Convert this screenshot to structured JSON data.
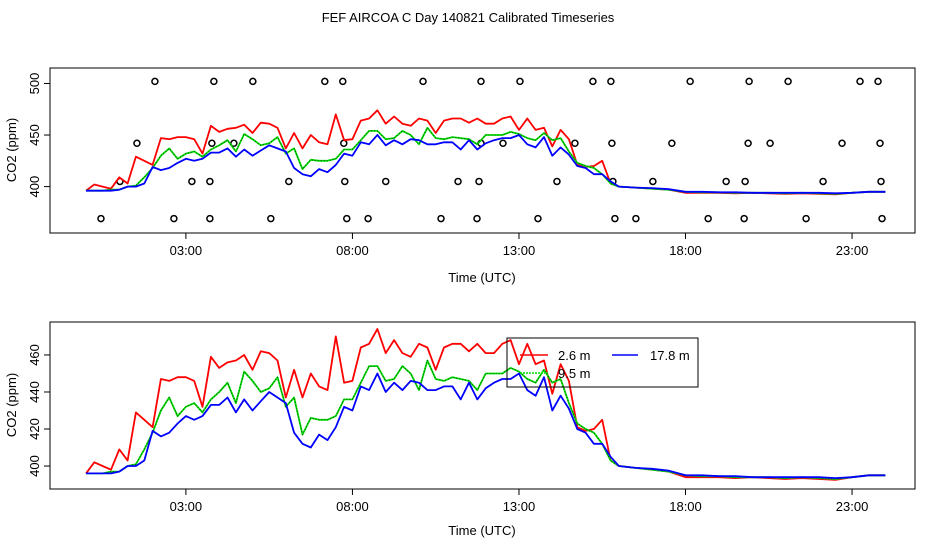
{
  "title": "FEF AIRCOA C  Day 140821  Calibrated Timeseries",
  "colors": {
    "s2_6": "#ff0000",
    "s9_5": "#00dd00",
    "s17_8": "#0000ff",
    "flag": "#000000"
  },
  "chart_data": [
    {
      "type": "line",
      "xlabel": "Time (UTC)",
      "ylabel": "CO2 (ppm)",
      "xlim": [
        -1.08,
        24.89
      ],
      "ylim": [
        355,
        515
      ],
      "xticks": [
        {
          "v": 3,
          "label": "03:00"
        },
        {
          "v": 8,
          "label": "08:00"
        },
        {
          "v": 13,
          "label": "13:00"
        },
        {
          "v": 18,
          "label": "18:00"
        },
        {
          "v": 23,
          "label": "23:00"
        }
      ],
      "yticks": [
        {
          "v": 400,
          "label": "400"
        },
        {
          "v": 450,
          "label": "450"
        },
        {
          "v": 500,
          "label": "500"
        }
      ],
      "grid": false,
      "x": [
        0,
        0.25,
        0.5,
        0.75,
        1,
        1.25,
        1.5,
        1.75,
        2,
        2.25,
        2.5,
        2.75,
        3,
        3.25,
        3.5,
        3.75,
        4,
        4.25,
        4.5,
        4.75,
        5,
        5.25,
        5.5,
        5.75,
        6,
        6.25,
        6.5,
        6.75,
        7,
        7.25,
        7.5,
        7.75,
        8,
        8.25,
        8.5,
        8.75,
        9,
        9.25,
        9.5,
        9.75,
        10,
        10.25,
        10.5,
        10.75,
        11,
        11.25,
        11.5,
        11.75,
        12,
        12.25,
        12.5,
        12.75,
        13,
        13.25,
        13.5,
        13.75,
        14,
        14.25,
        14.5,
        14.75,
        15,
        15.25,
        15.5,
        15.75,
        16,
        16.5,
        17,
        17.5,
        18,
        18.5,
        19,
        19.5,
        20,
        20.5,
        21,
        21.5,
        22,
        22.5,
        23,
        23.5,
        24
      ],
      "series": [
        {
          "key": "s2_6",
          "values": [
            396,
            402,
            400,
            398,
            409,
            403,
            429,
            425,
            421,
            447,
            446,
            448,
            448,
            446,
            432,
            459,
            453,
            456,
            457,
            460,
            452,
            462,
            461,
            457,
            437,
            452,
            437,
            450,
            443,
            441,
            470,
            445,
            446,
            464,
            466,
            474,
            461,
            468,
            461,
            459,
            466,
            464,
            452,
            464,
            466,
            466,
            462,
            466,
            461,
            461,
            466,
            468,
            455,
            466,
            455,
            457,
            439,
            455,
            446,
            421,
            419,
            420,
            425,
            403,
            400,
            399,
            398,
            397,
            394,
            394,
            394,
            393.5,
            394,
            393.5,
            393,
            393.5,
            393,
            392.5,
            394,
            395,
            395
          ]
        },
        {
          "key": "s9_5",
          "values": [
            396,
            396,
            396,
            397,
            397,
            400,
            401,
            409,
            418,
            430,
            437,
            427,
            432,
            434,
            429,
            436,
            440,
            445,
            434,
            451,
            446,
            440,
            442,
            448,
            432,
            437,
            417,
            426,
            425,
            425,
            427,
            436,
            436,
            445,
            454,
            454,
            446,
            447,
            454,
            450,
            441,
            457,
            447,
            446,
            448,
            447,
            446,
            441,
            450,
            450,
            450,
            453,
            451,
            447,
            445,
            452,
            445,
            447,
            434,
            423,
            420,
            418,
            412,
            403,
            400,
            399,
            398,
            397,
            395,
            394.5,
            394.5,
            394,
            394,
            394,
            393.5,
            394,
            393.5,
            393,
            394,
            395,
            395
          ]
        },
        {
          "key": "s17_8",
          "values": [
            396,
            396,
            396,
            396,
            397,
            400,
            400,
            403,
            419,
            416,
            418,
            423,
            427,
            425,
            427,
            433,
            433,
            437,
            429,
            436,
            430,
            435,
            440,
            437,
            434,
            418,
            412,
            410,
            417,
            414,
            421,
            432,
            430,
            443,
            441,
            450,
            440,
            445,
            441,
            446,
            445,
            441,
            441,
            443,
            443,
            436,
            445,
            436,
            442,
            445,
            447,
            447,
            450,
            441,
            438,
            448,
            430,
            438,
            431,
            420,
            418,
            412,
            412,
            405,
            400,
            399,
            398.5,
            397.5,
            395,
            395,
            394.5,
            394.5,
            394,
            394,
            394,
            394,
            394,
            393.5,
            394,
            395,
            395
          ]
        }
      ],
      "flags": [
        {
          "x": 2.07,
          "y": 502
        },
        {
          "x": 3.84,
          "y": 502
        },
        {
          "x": 5.01,
          "y": 502
        },
        {
          "x": 7.17,
          "y": 502
        },
        {
          "x": 7.71,
          "y": 502
        },
        {
          "x": 10.12,
          "y": 502
        },
        {
          "x": 11.86,
          "y": 502
        },
        {
          "x": 13.03,
          "y": 502
        },
        {
          "x": 15.22,
          "y": 502
        },
        {
          "x": 15.76,
          "y": 502
        },
        {
          "x": 18.14,
          "y": 502
        },
        {
          "x": 19.91,
          "y": 502
        },
        {
          "x": 21.08,
          "y": 502
        },
        {
          "x": 23.24,
          "y": 502
        },
        {
          "x": 23.78,
          "y": 502
        },
        {
          "x": 1.53,
          "y": 442
        },
        {
          "x": 3.78,
          "y": 442
        },
        {
          "x": 4.44,
          "y": 442
        },
        {
          "x": 7.74,
          "y": 442
        },
        {
          "x": 11.86,
          "y": 442
        },
        {
          "x": 12.52,
          "y": 442
        },
        {
          "x": 14.68,
          "y": 442
        },
        {
          "x": 15.79,
          "y": 442
        },
        {
          "x": 17.59,
          "y": 442
        },
        {
          "x": 19.88,
          "y": 442
        },
        {
          "x": 20.54,
          "y": 442
        },
        {
          "x": 22.7,
          "y": 442
        },
        {
          "x": 23.84,
          "y": 442
        },
        {
          "x": 1.02,
          "y": 405
        },
        {
          "x": 3.18,
          "y": 405
        },
        {
          "x": 3.72,
          "y": 405
        },
        {
          "x": 6.09,
          "y": 405
        },
        {
          "x": 7.77,
          "y": 405
        },
        {
          "x": 9.0,
          "y": 405
        },
        {
          "x": 11.17,
          "y": 405
        },
        {
          "x": 11.8,
          "y": 405
        },
        {
          "x": 14.14,
          "y": 405
        },
        {
          "x": 15.82,
          "y": 405
        },
        {
          "x": 17.02,
          "y": 405
        },
        {
          "x": 19.22,
          "y": 405
        },
        {
          "x": 19.79,
          "y": 405
        },
        {
          "x": 22.13,
          "y": 405
        },
        {
          "x": 23.87,
          "y": 405
        },
        {
          "x": 0.45,
          "y": 369
        },
        {
          "x": 2.64,
          "y": 369
        },
        {
          "x": 3.72,
          "y": 369
        },
        {
          "x": 5.55,
          "y": 369
        },
        {
          "x": 7.83,
          "y": 369
        },
        {
          "x": 8.47,
          "y": 369
        },
        {
          "x": 10.66,
          "y": 369
        },
        {
          "x": 11.74,
          "y": 369
        },
        {
          "x": 13.57,
          "y": 369
        },
        {
          "x": 15.88,
          "y": 369
        },
        {
          "x": 16.51,
          "y": 369
        },
        {
          "x": 18.68,
          "y": 369
        },
        {
          "x": 19.76,
          "y": 369
        },
        {
          "x": 21.62,
          "y": 369
        },
        {
          "x": 23.9,
          "y": 369
        }
      ]
    },
    {
      "type": "line",
      "xlabel": "Time (UTC)",
      "ylabel": "CO2 (ppm)",
      "xlim": [
        -1.08,
        24.89
      ],
      "ylim": [
        387.6,
        477.8
      ],
      "xticks": [
        {
          "v": 3,
          "label": "03:00"
        },
        {
          "v": 8,
          "label": "08:00"
        },
        {
          "v": 13,
          "label": "13:00"
        },
        {
          "v": 18,
          "label": "18:00"
        },
        {
          "v": 23,
          "label": "23:00"
        }
      ],
      "yticks": [
        {
          "v": 400,
          "label": "400"
        },
        {
          "v": 420,
          "label": "420"
        },
        {
          "v": 440,
          "label": "440"
        },
        {
          "v": 460,
          "label": "460"
        }
      ],
      "grid": false,
      "legend_position": "top-right",
      "x": [
        0,
        0.25,
        0.5,
        0.75,
        1,
        1.25,
        1.5,
        1.75,
        2,
        2.25,
        2.5,
        2.75,
        3,
        3.25,
        3.5,
        3.75,
        4,
        4.25,
        4.5,
        4.75,
        5,
        5.25,
        5.5,
        5.75,
        6,
        6.25,
        6.5,
        6.75,
        7,
        7.25,
        7.5,
        7.75,
        8,
        8.25,
        8.5,
        8.75,
        9,
        9.25,
        9.5,
        9.75,
        10,
        10.25,
        10.5,
        10.75,
        11,
        11.25,
        11.5,
        11.75,
        12,
        12.25,
        12.5,
        12.75,
        13,
        13.25,
        13.5,
        13.75,
        14,
        14.25,
        14.5,
        14.75,
        15,
        15.25,
        15.5,
        15.75,
        16,
        16.5,
        17,
        17.5,
        18,
        18.5,
        19,
        19.5,
        20,
        20.5,
        21,
        21.5,
        22,
        22.5,
        23,
        23.5,
        24
      ],
      "series": [
        {
          "key": "s2_6",
          "name": "2.6 m",
          "values": [
            396,
            402,
            400,
            398,
            409,
            403,
            429,
            425,
            421,
            447,
            446,
            448,
            448,
            446,
            432,
            459,
            453,
            456,
            457,
            460,
            452,
            462,
            461,
            457,
            437,
            452,
            437,
            450,
            443,
            441,
            470,
            445,
            446,
            464,
            466,
            474,
            461,
            468,
            461,
            459,
            466,
            464,
            452,
            464,
            466,
            466,
            462,
            466,
            461,
            461,
            466,
            468,
            455,
            466,
            455,
            457,
            439,
            455,
            446,
            421,
            419,
            420,
            425,
            403,
            400,
            399,
            398,
            397,
            394,
            394,
            394,
            393.5,
            394,
            393.5,
            393,
            393.5,
            393,
            392.5,
            394,
            395,
            395
          ]
        },
        {
          "key": "s9_5",
          "name": "9.5 m",
          "values": [
            396,
            396,
            396,
            397,
            397,
            400,
            401,
            409,
            418,
            430,
            437,
            427,
            432,
            434,
            429,
            436,
            440,
            445,
            434,
            451,
            446,
            440,
            442,
            448,
            432,
            437,
            417,
            426,
            425,
            425,
            427,
            436,
            436,
            445,
            454,
            454,
            446,
            447,
            454,
            450,
            441,
            457,
            447,
            446,
            448,
            447,
            446,
            441,
            450,
            450,
            450,
            453,
            451,
            447,
            445,
            452,
            445,
            447,
            434,
            423,
            420,
            418,
            412,
            403,
            400,
            399,
            398,
            397,
            395,
            394.5,
            394.5,
            394,
            394,
            394,
            393.5,
            394,
            393.5,
            393,
            394,
            395,
            395
          ]
        },
        {
          "key": "s17_8",
          "name": "17.8 m",
          "values": [
            396,
            396,
            396,
            396,
            397,
            400,
            400,
            403,
            419,
            416,
            418,
            423,
            427,
            425,
            427,
            433,
            433,
            437,
            429,
            436,
            430,
            435,
            440,
            437,
            434,
            418,
            412,
            410,
            417,
            414,
            421,
            432,
            430,
            443,
            441,
            450,
            440,
            445,
            441,
            446,
            445,
            441,
            441,
            443,
            443,
            436,
            445,
            436,
            442,
            445,
            447,
            447,
            450,
            441,
            438,
            448,
            430,
            438,
            431,
            420,
            418,
            412,
            412,
            405,
            400,
            399,
            398.5,
            397.5,
            395,
            395,
            394.5,
            394.5,
            394,
            394,
            394,
            394,
            394,
            393.5,
            394,
            395,
            395
          ]
        }
      ]
    }
  ]
}
